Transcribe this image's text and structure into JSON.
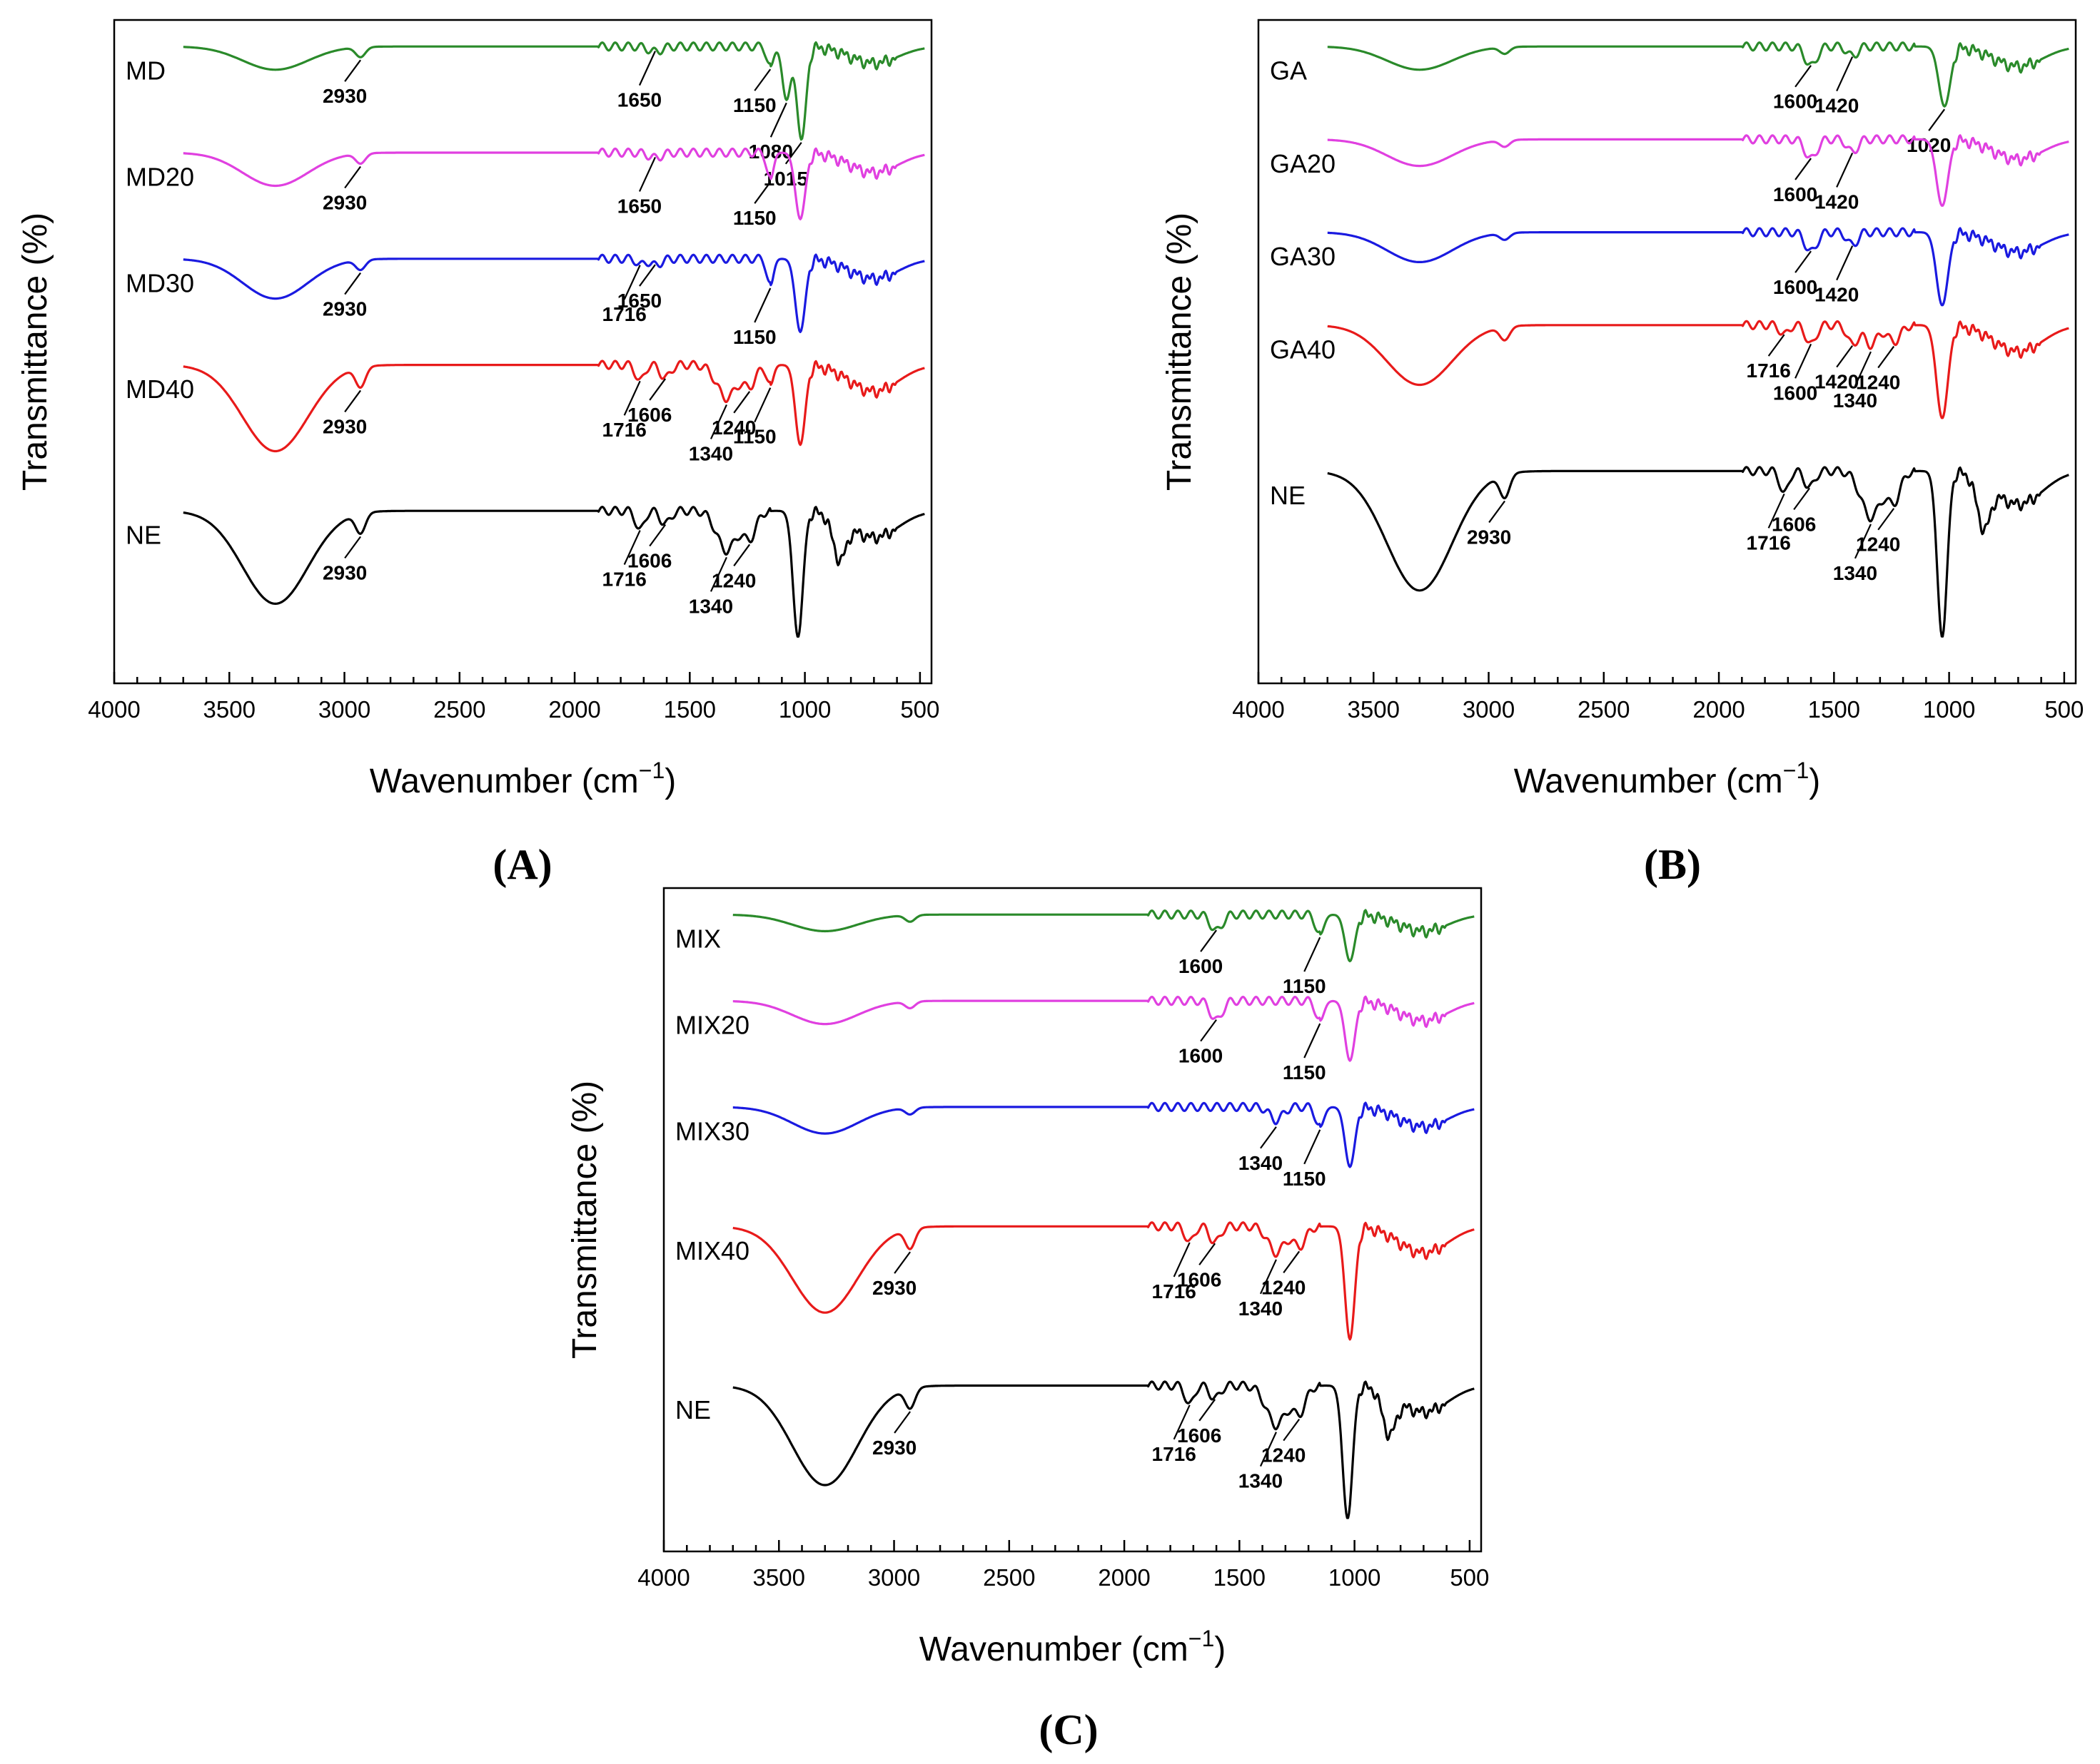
{
  "chart_data": [
    {
      "type": "line",
      "panel_label": "(A)",
      "xlabel": "Wavenumber (cm",
      "xlabel_sup": "−1",
      "xlabel_close": ")",
      "ylabel": "Transmittance (%)",
      "xlim": [
        4000,
        450
      ],
      "ylim": [
        0,
        100
      ],
      "grid": false,
      "legend": "none",
      "x_ticks": [
        4000,
        3500,
        3000,
        2500,
        2000,
        1500,
        1000,
        500
      ],
      "series": [
        {
          "name": "MD",
          "color": "#2a8a2a",
          "offset": 96,
          "dips": [
            [
              3300,
              3.5,
              200
            ],
            [
              2930,
              1.5,
              30
            ],
            [
              1650,
              0.8,
              40
            ],
            [
              1150,
              3,
              20
            ],
            [
              1080,
              8,
              25
            ],
            [
              1015,
              14,
              28
            ],
            [
              700,
              2.5,
              150
            ]
          ],
          "annotations": [
            {
              "label": "2930",
              "x": 2930
            },
            {
              "label": "1650",
              "x": 1650
            },
            {
              "label": "1150",
              "x": 1150
            },
            {
              "label": "1080",
              "x": 1080
            },
            {
              "label": "1015",
              "x": 1015
            }
          ]
        },
        {
          "name": "MD20",
          "color": "#e040e0",
          "offset": 80,
          "dips": [
            [
              3300,
              5,
              200
            ],
            [
              2930,
              1.5,
              30
            ],
            [
              1650,
              0.8,
              40
            ],
            [
              1150,
              4,
              20
            ],
            [
              1020,
              10,
              30
            ],
            [
              700,
              3,
              150
            ]
          ],
          "annotations": [
            {
              "label": "2930",
              "x": 2930
            },
            {
              "label": "1650",
              "x": 1650
            },
            {
              "label": "1150",
              "x": 1150
            }
          ]
        },
        {
          "name": "MD30",
          "color": "#1a1ae0",
          "offset": 64,
          "dips": [
            [
              3300,
              6,
              200
            ],
            [
              2930,
              1.5,
              30
            ],
            [
              1716,
              1,
              20
            ],
            [
              1650,
              1,
              35
            ],
            [
              1150,
              4,
              20
            ],
            [
              1020,
              11,
              30
            ],
            [
              700,
              3,
              150
            ]
          ],
          "annotations": [
            {
              "label": "2930",
              "x": 2930
            },
            {
              "label": "1716",
              "x": 1716
            },
            {
              "label": "1650",
              "x": 1650
            },
            {
              "label": "1150",
              "x": 1150
            }
          ]
        },
        {
          "name": "MD40",
          "color": "#e81a1a",
          "offset": 48,
          "dips": [
            [
              3300,
              13,
              200
            ],
            [
              2930,
              3,
              30
            ],
            [
              1716,
              2.5,
              25
            ],
            [
              1606,
              2,
              30
            ],
            [
              1340,
              5,
              60
            ],
            [
              1240,
              3,
              40
            ],
            [
              1150,
              3,
              20
            ],
            [
              1020,
              12,
              30
            ],
            [
              700,
              4,
              150
            ]
          ],
          "annotations": [
            {
              "label": "2930",
              "x": 2930
            },
            {
              "label": "1716",
              "x": 1716
            },
            {
              "label": "1606",
              "x": 1606
            },
            {
              "label": "1340",
              "x": 1340
            },
            {
              "label": "1240",
              "x": 1240
            },
            {
              "label": "1150",
              "x": 1150
            }
          ]
        },
        {
          "name": "NE",
          "color": "#000000",
          "offset": 26,
          "dips": [
            [
              3300,
              14,
              200
            ],
            [
              2930,
              3,
              30
            ],
            [
              1716,
              3,
              25
            ],
            [
              1606,
              2,
              30
            ],
            [
              1340,
              6,
              60
            ],
            [
              1240,
              4,
              40
            ],
            [
              1030,
              19,
              30
            ],
            [
              850,
              6,
              40
            ],
            [
              700,
              4,
              150
            ]
          ],
          "annotations": [
            {
              "label": "2930",
              "x": 2930
            },
            {
              "label": "1716",
              "x": 1716
            },
            {
              "label": "1606",
              "x": 1606
            },
            {
              "label": "1340",
              "x": 1340
            },
            {
              "label": "1240",
              "x": 1240
            }
          ]
        }
      ]
    },
    {
      "type": "line",
      "panel_label": "(B)",
      "xlabel": "Wavenumber (cm",
      "xlabel_sup": "−1",
      "xlabel_close": ")",
      "ylabel": "Transmittance (%)",
      "xlim": [
        4000,
        450
      ],
      "ylim": [
        0,
        100
      ],
      "grid": false,
      "legend": "none",
      "x_ticks": [
        4000,
        3500,
        3000,
        2500,
        2000,
        1500,
        1000,
        500
      ],
      "series": [
        {
          "name": "GA",
          "color": "#2a8a2a",
          "offset": 96,
          "dips": [
            [
              3300,
              3.5,
              200
            ],
            [
              2930,
              1,
              30
            ],
            [
              1600,
              3,
              35
            ],
            [
              1420,
              1.5,
              30
            ],
            [
              1020,
              9,
              35
            ],
            [
              700,
              3,
              150
            ]
          ],
          "annotations": [
            {
              "label": "1600",
              "x": 1600
            },
            {
              "label": "1420",
              "x": 1420
            },
            {
              "label": "1020",
              "x": 1020
            }
          ]
        },
        {
          "name": "GA20",
          "color": "#e040e0",
          "offset": 82,
          "dips": [
            [
              3300,
              4,
              200
            ],
            [
              2930,
              1,
              30
            ],
            [
              1600,
              3,
              35
            ],
            [
              1420,
              2,
              30
            ],
            [
              1030,
              10,
              35
            ],
            [
              700,
              3,
              150
            ]
          ],
          "annotations": [
            {
              "label": "1600",
              "x": 1600
            },
            {
              "label": "1420",
              "x": 1420
            }
          ]
        },
        {
          "name": "GA30",
          "color": "#1a1ae0",
          "offset": 68,
          "dips": [
            [
              3300,
              4.5,
              200
            ],
            [
              2930,
              1,
              30
            ],
            [
              1600,
              3,
              35
            ],
            [
              1420,
              2,
              30
            ],
            [
              1030,
              11,
              35
            ],
            [
              700,
              3,
              150
            ]
          ],
          "annotations": [
            {
              "label": "1600",
              "x": 1600
            },
            {
              "label": "1420",
              "x": 1420
            }
          ]
        },
        {
          "name": "GA40",
          "color": "#e81a1a",
          "offset": 54,
          "dips": [
            [
              3300,
              9,
              200
            ],
            [
              2930,
              2,
              30
            ],
            [
              1716,
              1.5,
              25
            ],
            [
              1600,
              3,
              30
            ],
            [
              1420,
              3,
              30
            ],
            [
              1340,
              3,
              40
            ],
            [
              1240,
              2.5,
              40
            ],
            [
              1030,
              14,
              35
            ],
            [
              700,
              4,
              150
            ]
          ],
          "annotations": [
            {
              "label": "1716",
              "x": 1716
            },
            {
              "label": "1600",
              "x": 1600
            },
            {
              "label": "1420",
              "x": 1420
            },
            {
              "label": "1340",
              "x": 1340
            },
            {
              "label": "1240",
              "x": 1240
            }
          ]
        },
        {
          "name": "NE",
          "color": "#000000",
          "offset": 32,
          "dips": [
            [
              3300,
              18,
              200
            ],
            [
              2930,
              3.5,
              30
            ],
            [
              1716,
              3.5,
              25
            ],
            [
              1606,
              2.5,
              30
            ],
            [
              1340,
              7,
              60
            ],
            [
              1240,
              4.5,
              40
            ],
            [
              1030,
              25,
              30
            ],
            [
              850,
              7,
              40
            ],
            [
              700,
              5,
              150
            ]
          ],
          "annotations": [
            {
              "label": "2930",
              "x": 2930
            },
            {
              "label": "1716",
              "x": 1716
            },
            {
              "label": "1606",
              "x": 1606
            },
            {
              "label": "1340",
              "x": 1340
            },
            {
              "label": "1240",
              "x": 1240
            }
          ]
        }
      ]
    },
    {
      "type": "line",
      "panel_label": "(C)",
      "xlabel": "Wavenumber (cm",
      "xlabel_sup": "−1",
      "xlabel_close": ")",
      "ylabel": "Transmittance (%)",
      "xlim": [
        4000,
        450
      ],
      "ylim": [
        0,
        100
      ],
      "grid": false,
      "legend": "none",
      "x_ticks": [
        4000,
        3500,
        3000,
        2500,
        2000,
        1500,
        1000,
        500
      ],
      "series": [
        {
          "name": "MIX",
          "color": "#2a8a2a",
          "offset": 96,
          "dips": [
            [
              3300,
              2.5,
              200
            ],
            [
              2930,
              1,
              30
            ],
            [
              1600,
              2.5,
              35
            ],
            [
              1150,
              3,
              25
            ],
            [
              1020,
              7,
              30
            ],
            [
              700,
              2.5,
              150
            ]
          ],
          "annotations": [
            {
              "label": "1600",
              "x": 1600
            },
            {
              "label": "1150",
              "x": 1150
            }
          ]
        },
        {
          "name": "MIX20",
          "color": "#e040e0",
          "offset": 83,
          "dips": [
            [
              3300,
              3.5,
              200
            ],
            [
              2930,
              1,
              30
            ],
            [
              1600,
              3,
              35
            ],
            [
              1150,
              3,
              25
            ],
            [
              1020,
              9,
              30
            ],
            [
              700,
              3,
              150
            ]
          ],
          "annotations": [
            {
              "label": "1600",
              "x": 1600
            },
            {
              "label": "1150",
              "x": 1150
            }
          ]
        },
        {
          "name": "MIX30",
          "color": "#1a1ae0",
          "offset": 67,
          "dips": [
            [
              3300,
              4,
              200
            ],
            [
              2930,
              1,
              30
            ],
            [
              1340,
              2,
              40
            ],
            [
              1150,
              3,
              25
            ],
            [
              1020,
              9,
              30
            ],
            [
              700,
              3,
              150
            ]
          ],
          "annotations": [
            {
              "label": "1340",
              "x": 1340
            },
            {
              "label": "1150",
              "x": 1150
            }
          ]
        },
        {
          "name": "MIX40",
          "color": "#e81a1a",
          "offset": 49,
          "dips": [
            [
              3300,
              13,
              200
            ],
            [
              2930,
              3,
              30
            ],
            [
              1716,
              2.5,
              25
            ],
            [
              1606,
              2.5,
              30
            ],
            [
              1340,
              4,
              50
            ],
            [
              1240,
              3,
              40
            ],
            [
              1020,
              17,
              30
            ],
            [
              700,
              4,
              150
            ]
          ],
          "annotations": [
            {
              "label": "2930",
              "x": 2930
            },
            {
              "label": "1716",
              "x": 1716
            },
            {
              "label": "1606",
              "x": 1606
            },
            {
              "label": "1340",
              "x": 1340
            },
            {
              "label": "1240",
              "x": 1240
            }
          ]
        },
        {
          "name": "NE",
          "color": "#000000",
          "offset": 25,
          "dips": [
            [
              3300,
              15,
              200
            ],
            [
              2930,
              3,
              30
            ],
            [
              1716,
              3,
              25
            ],
            [
              1606,
              2,
              30
            ],
            [
              1340,
              6,
              60
            ],
            [
              1240,
              4,
              40
            ],
            [
              1030,
              20,
              30
            ],
            [
              850,
              6,
              40
            ],
            [
              700,
              4,
              150
            ]
          ],
          "annotations": [
            {
              "label": "2930",
              "x": 2930
            },
            {
              "label": "1716",
              "x": 1716
            },
            {
              "label": "1606",
              "x": 1606
            },
            {
              "label": "1340",
              "x": 1340
            },
            {
              "label": "1240",
              "x": 1240
            }
          ]
        }
      ]
    }
  ]
}
